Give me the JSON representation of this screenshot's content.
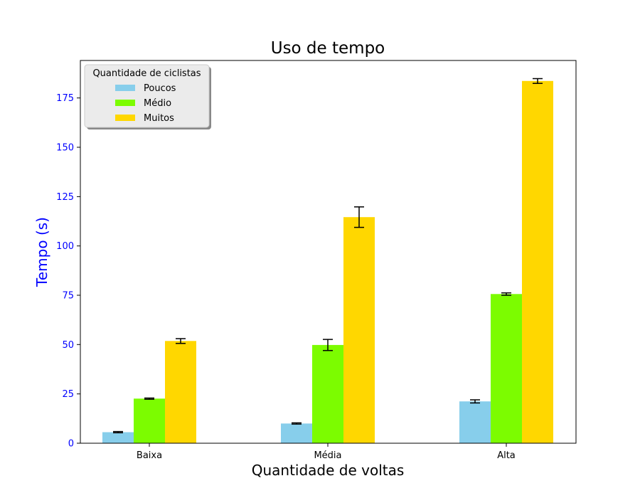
{
  "chart_data": {
    "type": "bar",
    "title": "Uso de tempo",
    "xlabel": "Quantidade de voltas",
    "ylabel": "Tempo (s)",
    "ylabel_color": "#0000ff",
    "ytick_color": "#0000ff",
    "categories": [
      "Baixa",
      "Média",
      "Alta"
    ],
    "ylim": [
      0,
      194
    ],
    "yticks": [
      0,
      25,
      50,
      75,
      100,
      125,
      150,
      175
    ],
    "legend": {
      "title": "Quantidade de ciclistas",
      "placement": "top-left"
    },
    "series": [
      {
        "name": "Poucos",
        "color": "#87ceeb",
        "values": [
          5.6,
          10.0,
          21.2
        ],
        "errors": [
          0.3,
          0.3,
          0.8
        ]
      },
      {
        "name": "Médio",
        "color": "#7cfc00",
        "values": [
          22.6,
          49.8,
          75.6
        ],
        "errors": [
          0.3,
          2.8,
          0.6
        ]
      },
      {
        "name": "Muitos",
        "color": "#ffd700",
        "values": [
          51.8,
          114.6,
          183.6
        ],
        "errors": [
          1.2,
          5.2,
          1.2
        ]
      }
    ]
  }
}
